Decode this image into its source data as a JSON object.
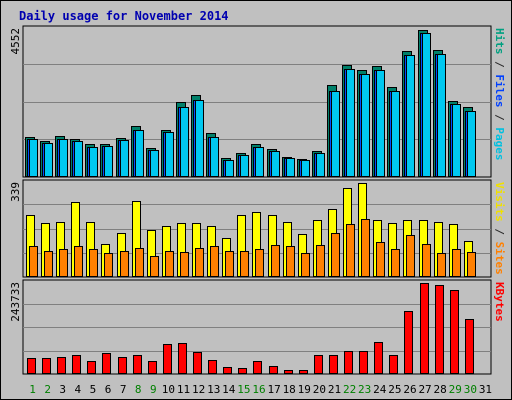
{
  "chart_data": {
    "type": "bar",
    "title": "Daily usage for November 2014",
    "categories": [
      "1",
      "2",
      "3",
      "4",
      "5",
      "6",
      "7",
      "8",
      "9",
      "10",
      "11",
      "12",
      "13",
      "14",
      "15",
      "16",
      "17",
      "18",
      "19",
      "20",
      "21",
      "22",
      "23",
      "24",
      "25",
      "26",
      "27",
      "28",
      "29",
      "30",
      "31"
    ],
    "weekend_days": [
      "1",
      "2",
      "8",
      "9",
      "15",
      "16",
      "22",
      "23",
      "29",
      "30"
    ],
    "panels": [
      {
        "id": "hits",
        "ymax_label": "4552",
        "ymax": 4552,
        "axis_label_parts": [
          {
            "text": "Pages",
            "color": "#00c0e0"
          },
          {
            "text": " / ",
            "color": "#2a2a2a"
          },
          {
            "text": "Files",
            "color": "#0040ff"
          },
          {
            "text": " / ",
            "color": "#2a2a2a"
          },
          {
            "text": "Hits",
            "color": "#00a080"
          }
        ],
        "series": [
          {
            "name": "Hits",
            "color": "#00806a",
            "values": [
              1240,
              1120,
              1260,
              1180,
              1000,
              1000,
              1200,
              1570,
              880,
              1460,
              2300,
              2530,
              1340,
              580,
              750,
              1000,
              860,
              620,
              560,
              800,
              2840,
              3460,
              3300,
              3420,
              2760,
              3890,
              4520,
              3900,
              2350,
              2140,
              0
            ]
          },
          {
            "name": "Files",
            "color": "#0050ff",
            "values": [
              1180,
              1060,
              1180,
              1100,
              920,
              950,
              1150,
              1460,
              820,
              1390,
              2140,
              2380,
              1240,
              530,
              690,
              920,
              810,
              570,
              520,
              730,
              2640,
              3330,
              3180,
              3300,
              2640,
              3760,
              4420,
              3790,
              2260,
              2030,
              0
            ]
          },
          {
            "name": "Pages",
            "color": "#00c8f0",
            "values": [
              1180,
              1060,
              1180,
              1100,
              920,
              950,
              1150,
              1460,
              820,
              1390,
              2140,
              2380,
              1240,
              530,
              690,
              920,
              810,
              570,
              520,
              730,
              2640,
              3330,
              3180,
              3300,
              2640,
              3760,
              4420,
              3790,
              2260,
              2030,
              0
            ]
          }
        ]
      },
      {
        "id": "visits",
        "ymax_label": "339",
        "ymax": 339,
        "axis_label_parts": [
          {
            "text": "Sites",
            "color": "#ff8000"
          },
          {
            "text": " / ",
            "color": "#2a2a2a"
          },
          {
            "text": "Visits",
            "color": "#f0e000"
          }
        ],
        "series": [
          {
            "name": "Visits",
            "color": "#ffff00",
            "values": [
              222,
              195,
              198,
              270,
              197,
              120,
              160,
              275,
              170,
              185,
              195,
              195,
              185,
              140,
              222,
              235,
              225,
              200,
              155,
              205,
              245,
              320,
              339,
              205,
              195,
              205,
              205,
              200,
              190,
              130,
              0
            ]
          },
          {
            "name": "Sites",
            "color": "#ff8000",
            "values": [
              110,
              95,
              100,
              110,
              100,
              85,
              95,
              105,
              75,
              95,
              90,
              105,
              110,
              95,
              95,
              100,
              115,
              110,
              85,
              115,
              160,
              190,
              210,
              125,
              100,
              150,
              120,
              85,
              100,
              90,
              0
            ]
          }
        ]
      },
      {
        "id": "kbytes",
        "ymax_label": "243733",
        "ymax": 243733,
        "axis_label_parts": [
          {
            "text": "KBytes",
            "color": "#ff0000"
          }
        ],
        "series": [
          {
            "name": "KBytes",
            "color": "#ff0000",
            "values": [
              42000,
              42000,
              45000,
              50000,
              35000,
              56000,
              46000,
              50000,
              36000,
              80000,
              84000,
              58000,
              38000,
              18000,
              16000,
              36000,
              22000,
              10000,
              11000,
              52000,
              52000,
              62000,
              62000,
              85000,
              52000,
              168000,
              243000,
              238000,
              225000,
              146000,
              0
            ]
          }
        ]
      }
    ]
  }
}
